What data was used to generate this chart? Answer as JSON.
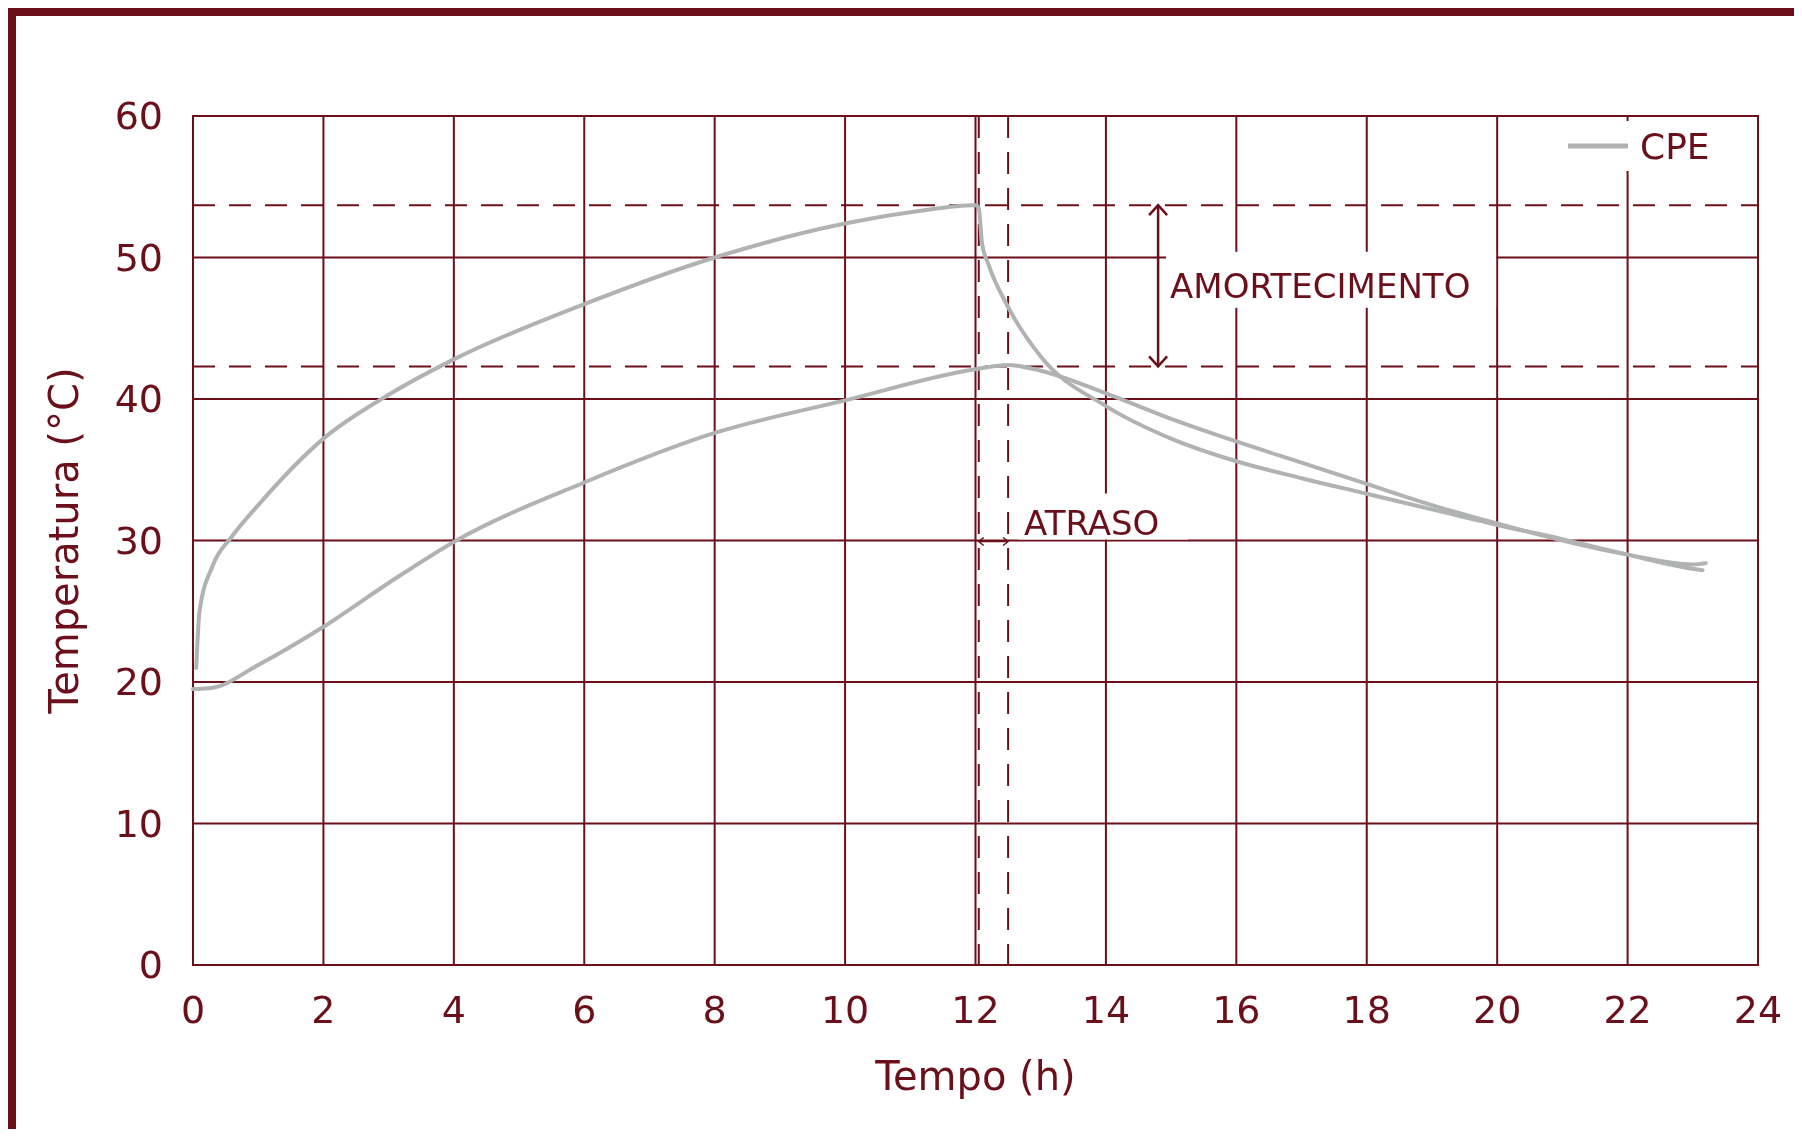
{
  "chart_data": {
    "type": "line",
    "xlabel": "Tempo (h)",
    "ylabel": "Temperatura (°C)",
    "xlim": [
      0,
      24
    ],
    "xticks": [
      0,
      2,
      4,
      6,
      8,
      10,
      12,
      14,
      16,
      18,
      20,
      22,
      24
    ],
    "ylim": [
      0,
      60
    ],
    "yticks": [
      0,
      10,
      20,
      30,
      40,
      50,
      60
    ],
    "grid": true,
    "legend": "top right",
    "line_style": "solid",
    "series": [
      {
        "name": "CPE",
        "color": "#b1b3b3",
        "x": [
          0.05,
          0.1,
          0.3,
          0.6,
          1,
          2,
          3,
          4,
          6,
          8,
          10,
          11,
          12,
          12.05,
          12.1,
          12.2,
          12.5,
          13,
          14,
          15,
          16,
          17,
          18,
          19,
          20,
          21,
          22,
          23,
          23.15
        ],
        "values": [
          21,
          25,
          28.2,
          30.3,
          32.5,
          37.2,
          40.3,
          42.8,
          46.7,
          50,
          52.4,
          53.2,
          53.7,
          53.5,
          51,
          49.5,
          46.5,
          43,
          39.5,
          37.2,
          35.6,
          34.4,
          33.3,
          32.2,
          31.1,
          30.1,
          29,
          28,
          27.9
        ]
      },
      {
        "color": "#b1b3b3",
        "x": [
          0,
          0.3,
          1,
          2,
          3,
          4,
          6,
          8,
          10,
          12,
          12.5,
          13,
          14,
          15,
          16,
          17,
          18,
          19,
          20,
          21,
          22,
          23,
          23.2
        ],
        "values": [
          19.5,
          19.6,
          21.2,
          23.9,
          27,
          29.9,
          34.1,
          37.6,
          39.9,
          42.1,
          42.4,
          42,
          40.4,
          38.6,
          37,
          35.5,
          34,
          32.5,
          31.2,
          30,
          29,
          28.3,
          28.4
        ]
      }
    ],
    "ref_lines": [
      {
        "axis": "y",
        "value": 53.7,
        "color": "#6b0f1a",
        "line_style": "dashed"
      },
      {
        "axis": "y",
        "value": 42.3,
        "color": "#6b0f1a",
        "line_style": "dashed"
      },
      {
        "axis": "x",
        "value": 12.05,
        "color": "#6b0f1a",
        "line_style": "dashed"
      },
      {
        "axis": "x",
        "value": 12.5,
        "color": "#6b0f1a",
        "line_style": "dashed"
      }
    ],
    "annotations": [
      "AMORTECIMENTO",
      "ATRASO"
    ]
  }
}
